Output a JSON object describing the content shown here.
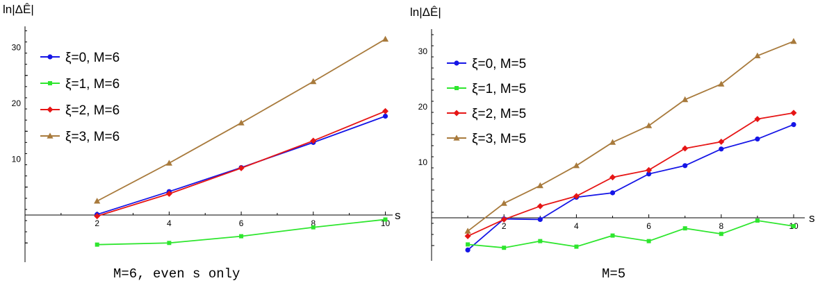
{
  "chart_data": [
    {
      "type": "line",
      "ylabel": "ln|ΔÊ|",
      "xlabel": "s",
      "caption": "M=6, even s only",
      "xlim": [
        0,
        10.2
      ],
      "ylim": [
        -7.5,
        34.5
      ],
      "xticks": [
        2,
        4,
        6,
        8,
        10
      ],
      "xtick_labels": [
        "2",
        "4",
        "6",
        "8",
        "10"
      ],
      "yticks": [
        10,
        20,
        30
      ],
      "ytick_labels": [
        "10",
        "20",
        "30"
      ],
      "legend_position": "top-left",
      "x": [
        2,
        4,
        6,
        8,
        10
      ],
      "series": [
        {
          "name": "ξ=0, M=6",
          "color": "#1515e6",
          "marker": "circle",
          "values": [
            0.1,
            4.2,
            8.5,
            13.0,
            17.7
          ]
        },
        {
          "name": "ξ=1, M=6",
          "color": "#2ee62e",
          "marker": "square",
          "values": [
            -5.3,
            -5.0,
            -3.8,
            -2.2,
            -0.8
          ]
        },
        {
          "name": "ξ=2, M=6",
          "color": "#e61515",
          "marker": "diamond",
          "values": [
            -0.2,
            3.8,
            8.4,
            13.3,
            18.6
          ]
        },
        {
          "name": "ξ=3, M=6",
          "color": "#a87a3c",
          "marker": "triangle",
          "values": [
            2.5,
            9.3,
            16.5,
            23.9,
            31.5
          ]
        }
      ]
    },
    {
      "type": "line",
      "ylabel": "ln|ΔÊ|",
      "xlabel": "s",
      "caption": "M=5",
      "xlim": [
        0,
        10.2
      ],
      "ylim": [
        -7.5,
        34.5
      ],
      "xticks": [
        2,
        4,
        6,
        8,
        10
      ],
      "xtick_labels": [
        "2",
        "4",
        "6",
        "8",
        "10"
      ],
      "yticks": [
        10,
        20,
        30
      ],
      "ytick_labels": [
        "10",
        "20",
        "30"
      ],
      "legend_position": "top-left",
      "x": [
        1,
        2,
        3,
        4,
        5,
        6,
        7,
        8,
        9,
        10
      ],
      "series": [
        {
          "name": "ξ=0, M=5",
          "color": "#1515e6",
          "marker": "circle",
          "values": [
            -5.8,
            -0.2,
            -0.3,
            3.7,
            4.5,
            7.9,
            9.4,
            12.4,
            14.2,
            16.8
          ]
        },
        {
          "name": "ξ=1, M=5",
          "color": "#2ee62e",
          "marker": "square",
          "values": [
            -4.8,
            -5.4,
            -4.2,
            -5.2,
            -3.2,
            -4.2,
            -1.9,
            -2.9,
            -0.5,
            -1.5
          ]
        },
        {
          "name": "ξ=2, M=5",
          "color": "#e61515",
          "marker": "diamond",
          "values": [
            -3.3,
            -0.3,
            2.1,
            3.9,
            7.3,
            8.6,
            12.5,
            13.7,
            17.8,
            18.9
          ]
        },
        {
          "name": "ξ=3, M=5",
          "color": "#a87a3c",
          "marker": "triangle",
          "values": [
            -2.4,
            2.6,
            5.8,
            9.4,
            13.6,
            16.6,
            21.3,
            24.1,
            29.2,
            31.8
          ]
        }
      ]
    }
  ]
}
